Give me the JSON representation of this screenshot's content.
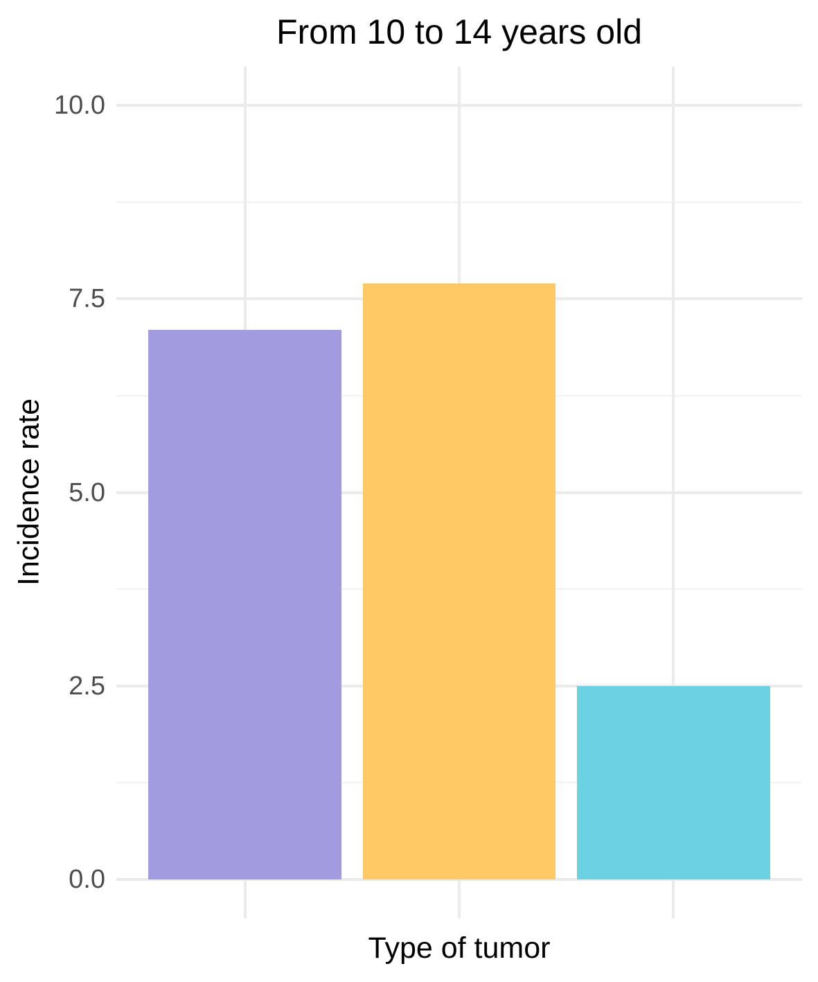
{
  "chart": {
    "title": "From 10 to 14 years old",
    "xlabel": "Type of tumor",
    "ylabel": "Incidence rate"
  },
  "chart_data": {
    "type": "bar",
    "title": "From 10 to 14 years old",
    "xlabel": "Type of tumor",
    "ylabel": "Incidence rate",
    "categories": [
      "",
      "",
      ""
    ],
    "values": [
      7.1,
      7.7,
      2.5
    ],
    "bar_colors": [
      "#A39BDF",
      "#FFC966",
      "#6BD2E4"
    ],
    "ylim": [
      0,
      10
    ],
    "y_ticks": [
      0.0,
      2.5,
      5.0,
      7.5,
      10.0
    ],
    "y_tick_labels": [
      "0.0",
      "2.5",
      "5.0",
      "7.5",
      "10.0"
    ],
    "y_minor_ticks": [
      1.25,
      3.75,
      6.25,
      8.75
    ],
    "grid": true,
    "legend_position": "none",
    "x_tick_labels": [],
    "colors": {
      "grid_major": "#EBEBEB",
      "grid_minor": "#F2F2F2",
      "tick_label_text": "#4D4D4D",
      "title_text": "#000000",
      "background": "#FFFFFF"
    }
  }
}
